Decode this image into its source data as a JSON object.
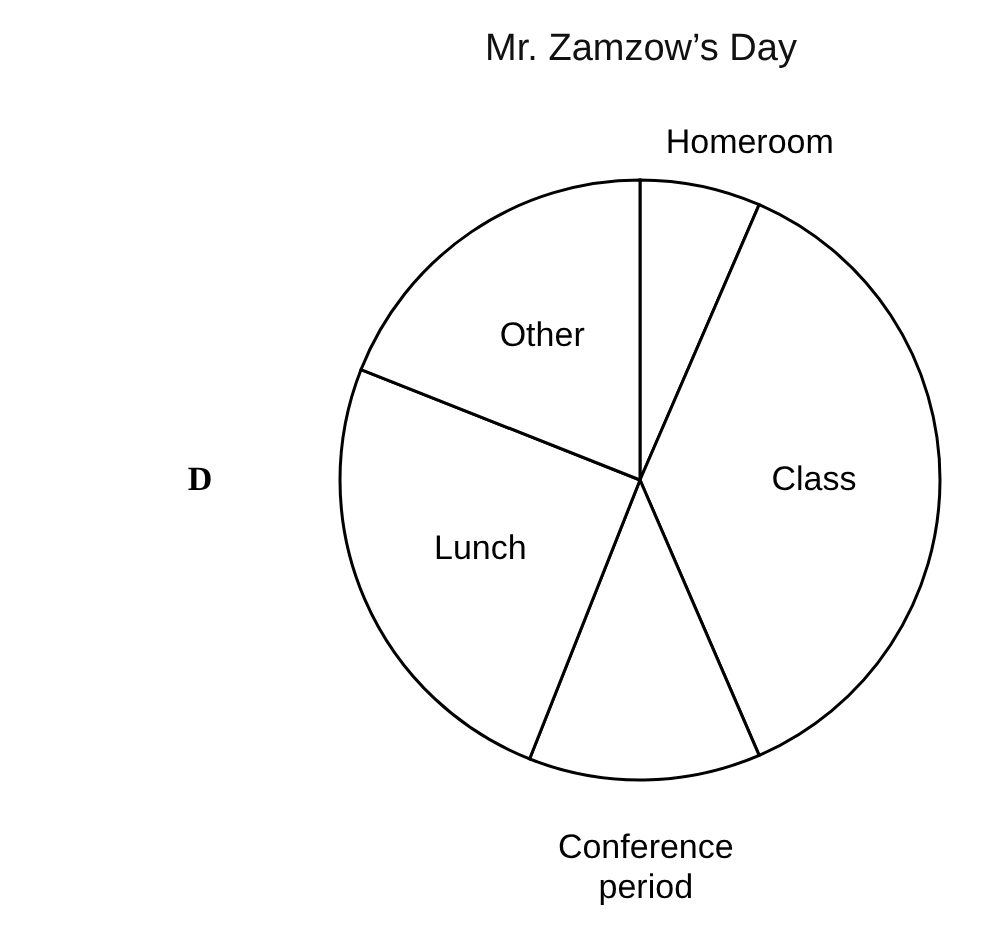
{
  "chart_data": {
    "type": "pie",
    "title": "Mr. Zamzow’s Day",
    "categories": [
      "Homeroom",
      "Class",
      "Conference period",
      "Lunch",
      "Other"
    ],
    "values": [
      6.5,
      37,
      12.5,
      25,
      19
    ],
    "colors": [
      "#ffffff",
      "#ffffff",
      "#ffffff",
      "#ffffff",
      "#ffffff"
    ],
    "legend": false,
    "annotations": [
      "D"
    ]
  }
}
